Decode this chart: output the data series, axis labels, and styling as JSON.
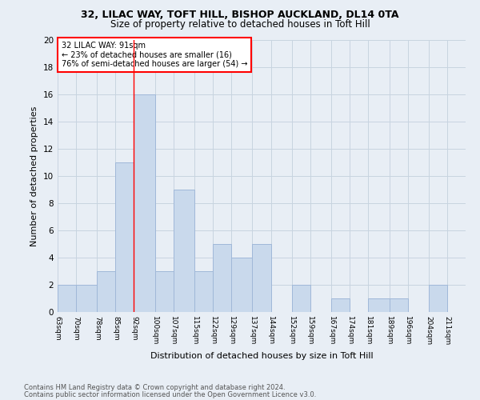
{
  "title1": "32, LILAC WAY, TOFT HILL, BISHOP AUCKLAND, DL14 0TA",
  "title2": "Size of property relative to detached houses in Toft Hill",
  "xlabel": "Distribution of detached houses by size in Toft Hill",
  "ylabel": "Number of detached properties",
  "footnote1": "Contains HM Land Registry data © Crown copyright and database right 2024.",
  "footnote2": "Contains public sector information licensed under the Open Government Licence v3.0.",
  "bin_labels": [
    "63sqm",
    "70sqm",
    "78sqm",
    "85sqm",
    "92sqm",
    "100sqm",
    "107sqm",
    "115sqm",
    "122sqm",
    "129sqm",
    "137sqm",
    "144sqm",
    "152sqm",
    "159sqm",
    "167sqm",
    "174sqm",
    "181sqm",
    "189sqm",
    "196sqm",
    "204sqm",
    "211sqm"
  ],
  "bin_edges": [
    63,
    70,
    78,
    85,
    92,
    100,
    107,
    115,
    122,
    129,
    137,
    144,
    152,
    159,
    167,
    174,
    181,
    189,
    196,
    204,
    211
  ],
  "counts": [
    2,
    2,
    3,
    11,
    16,
    3,
    9,
    3,
    5,
    4,
    5,
    0,
    2,
    0,
    1,
    0,
    1,
    1,
    0,
    2,
    0
  ],
  "bar_color": "#c9d9ec",
  "bar_edge_color": "#a0b8d8",
  "red_line_x": 92,
  "annotation_text": "32 LILAC WAY: 91sqm\n← 23% of detached houses are smaller (16)\n76% of semi-detached houses are larger (54) →",
  "annotation_box_color": "white",
  "annotation_box_edge": "red",
  "ylim": [
    0,
    20
  ],
  "yticks": [
    0,
    2,
    4,
    6,
    8,
    10,
    12,
    14,
    16,
    18,
    20
  ],
  "grid_color": "#c8d4e0",
  "bg_color": "#e8eef5"
}
